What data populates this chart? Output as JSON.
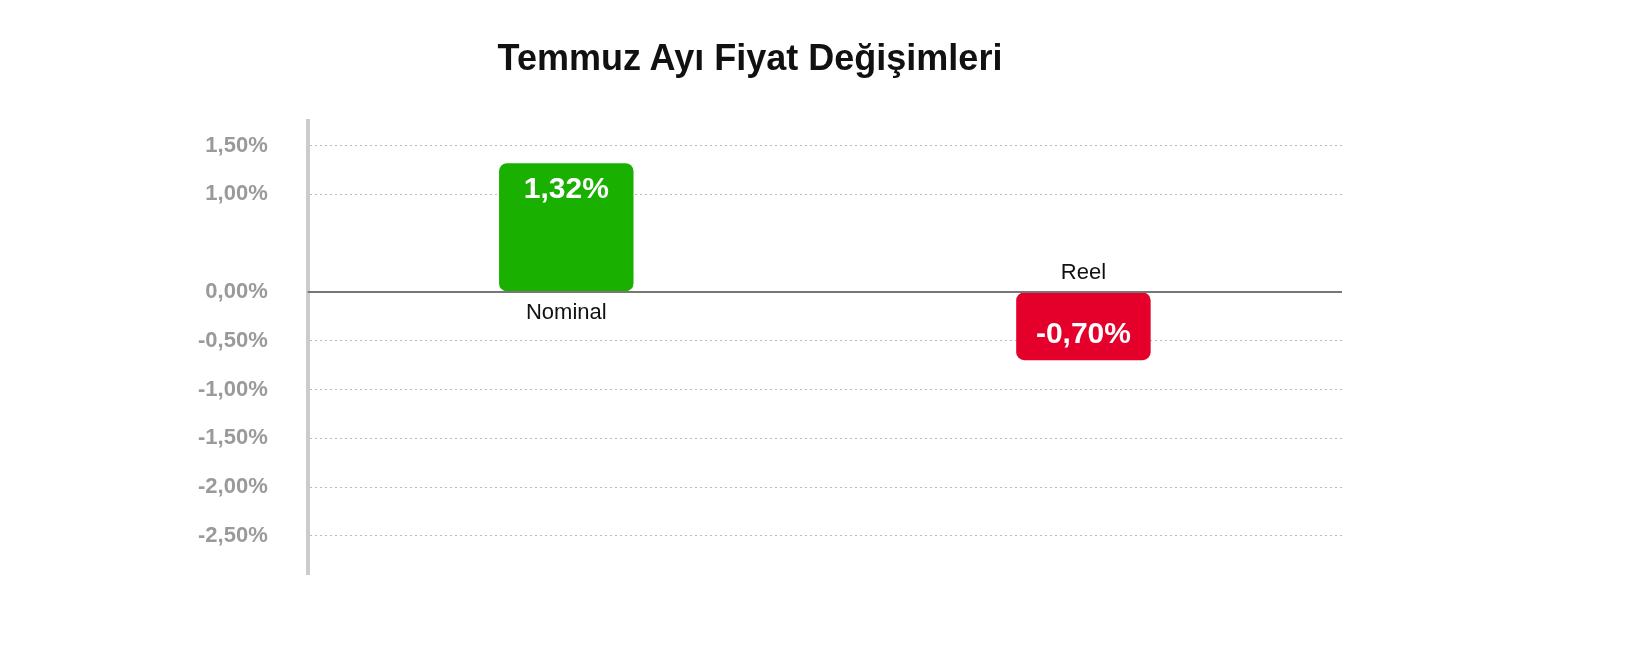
{
  "chart_data": {
    "type": "bar",
    "title": "Temmuz Ayı Fiyat Değişimleri",
    "categories": [
      "Nominal",
      "Reel"
    ],
    "values": [
      1.32,
      -0.7
    ],
    "colors": [
      "#19b000",
      "#e4002b"
    ],
    "value_labels": [
      "1,32%",
      "-0,70%"
    ],
    "ylim": [
      -2.9,
      1.75
    ],
    "yticks": [
      {
        "value": 1.5,
        "label": "1,50%"
      },
      {
        "value": 1,
        "label": "1,00%"
      },
      {
        "value": 0,
        "label": "0,00%"
      },
      {
        "value": -0.5,
        "label": "-0,50%"
      },
      {
        "value": -1,
        "label": "-1,00%"
      },
      {
        "value": -1.5,
        "label": "-1,50%"
      },
      {
        "value": -2,
        "label": "-2,00%"
      },
      {
        "value": -2.5,
        "label": "-2,50%"
      }
    ],
    "grid": "y",
    "ref_lines": [
      {
        "axis": "y",
        "value": 0,
        "color": "#777777",
        "line_style": "solid"
      }
    ]
  }
}
